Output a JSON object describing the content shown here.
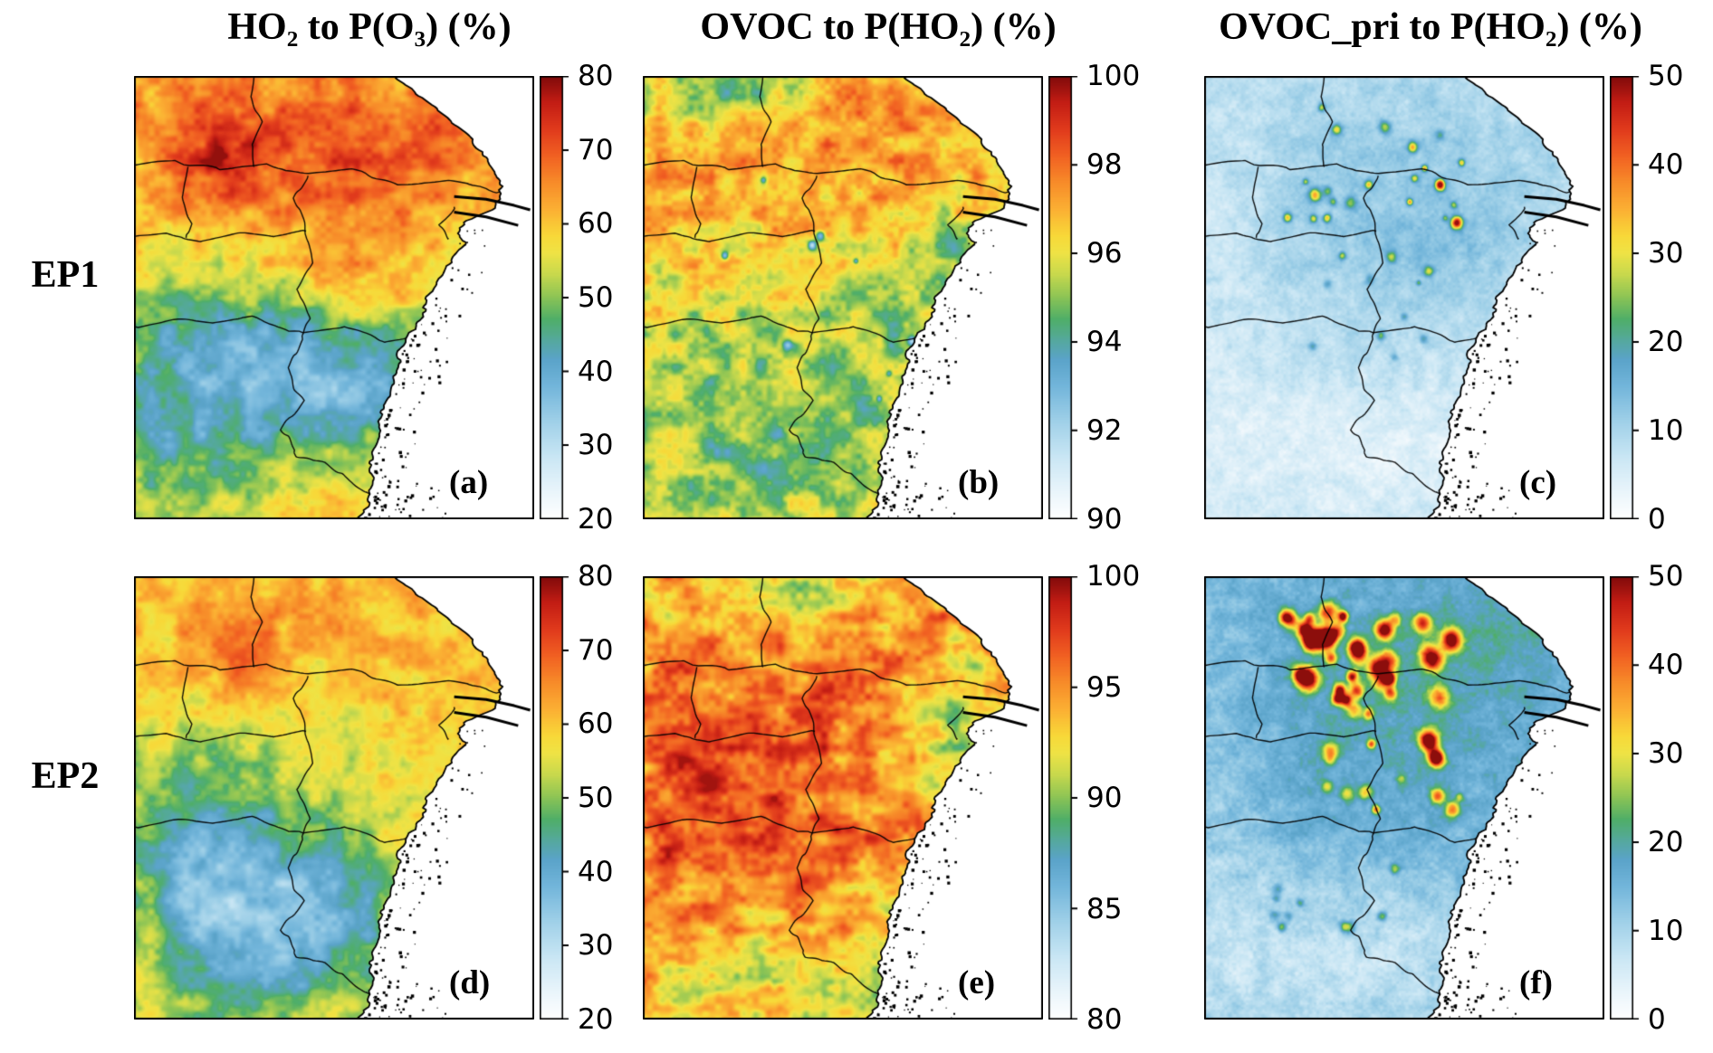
{
  "figure": {
    "background": "#ffffff",
    "column_titles": [
      "HO₂ to P(O₃) (%)",
      "OVOC to P(HO₂) (%)",
      "OVOC_pri to P(HO₂) (%)"
    ],
    "row_labels": [
      "EP1",
      "EP2"
    ]
  },
  "chart_data": {
    "type": "heatmap",
    "title": "Spatial distributions over eastern China (Yangtze River Delta region) for episodes EP1 and EP2",
    "rows": [
      "EP1",
      "EP2"
    ],
    "columns": [
      "HO2 to P(O3) (%)",
      "OVOC to P(HO2) (%)",
      "OVOC_pri to P(HO2) (%)"
    ],
    "legend_position": "right-colorbar-per-panel",
    "colormap_stops": [
      [
        0.0,
        "#ffffff"
      ],
      [
        0.06,
        "#eaf5fb"
      ],
      [
        0.14,
        "#c9e6f4"
      ],
      [
        0.22,
        "#9fd0e8"
      ],
      [
        0.3,
        "#72b5da"
      ],
      [
        0.36,
        "#5aa3c9"
      ],
      [
        0.4,
        "#55a8a0"
      ],
      [
        0.45,
        "#4fae68"
      ],
      [
        0.5,
        "#8cc455"
      ],
      [
        0.55,
        "#c6d84d"
      ],
      [
        0.6,
        "#efe345"
      ],
      [
        0.64,
        "#f8d838"
      ],
      [
        0.7,
        "#fbaf33"
      ],
      [
        0.76,
        "#f78b29"
      ],
      [
        0.82,
        "#f16022"
      ],
      [
        0.88,
        "#e03a1c"
      ],
      [
        0.94,
        "#c31d14"
      ],
      [
        1.0,
        "#7f0a0a"
      ]
    ],
    "panels": [
      {
        "letter": "(a)",
        "row": "EP1",
        "column": "HO2 to P(O3) (%)",
        "vmin": 20,
        "vmax": 80,
        "cbar_ticks": [
          80,
          70,
          60,
          50,
          40,
          30,
          20
        ],
        "seed": 101,
        "base": 60,
        "clamp": [
          22,
          79
        ],
        "blobs": [
          [
            0.3,
            0.1,
            0.45,
            0.18,
            6
          ],
          [
            0.22,
            0.19,
            0.07,
            0.06,
            11
          ],
          [
            0.55,
            0.3,
            0.25,
            0.12,
            5
          ],
          [
            0.33,
            0.6,
            0.28,
            0.16,
            -14
          ],
          [
            0.52,
            0.72,
            0.13,
            0.1,
            -10
          ],
          [
            0.12,
            0.8,
            0.22,
            0.18,
            -12
          ],
          [
            0.75,
            0.62,
            0.1,
            0.25,
            -5
          ],
          [
            0.6,
            0.47,
            0.3,
            0.06,
            6
          ],
          [
            0.65,
            0.13,
            0.18,
            0.1,
            4
          ]
        ],
        "octaves": [
          [
            24,
            26,
            5
          ],
          [
            70,
            78,
            2.5
          ]
        ]
      },
      {
        "letter": "(b)",
        "row": "EP1",
        "column": "OVOC to P(HO2) (%)",
        "vmin": 90,
        "vmax": 100,
        "cbar_ticks": [
          100,
          98,
          96,
          94,
          92,
          90
        ],
        "seed": 202,
        "base": 96.6,
        "clamp": [
          90.5,
          99.2
        ],
        "blobs": [
          [
            0.14,
            0.05,
            0.1,
            0.05,
            -2.2
          ],
          [
            0.3,
            0.04,
            0.08,
            0.04,
            -1.6
          ],
          [
            0.45,
            0.1,
            0.35,
            0.08,
            0.7
          ],
          [
            0.5,
            0.32,
            0.3,
            0.15,
            0.5
          ],
          [
            0.25,
            0.72,
            0.3,
            0.2,
            -1.5
          ],
          [
            0.65,
            0.57,
            0.12,
            0.18,
            -1.2
          ],
          [
            0.78,
            0.38,
            0.06,
            0.05,
            -1.8
          ],
          [
            0.45,
            0.9,
            0.3,
            0.08,
            -1.0
          ]
        ],
        "octaves": [
          [
            24,
            26,
            1.1
          ],
          [
            76,
            84,
            0.5
          ]
        ],
        "hotspots": {
          "gens": [
            {
              "seed": 31,
              "count": 12,
              "x": [
                0.2,
                0.78
              ],
              "y": [
                0.1,
                0.85
              ],
              "amp": [
                -4,
                -2
              ],
              "r": [
                0.006,
                0.012
              ]
            }
          ],
          "extras": []
        }
      },
      {
        "letter": "(c)",
        "row": "EP1",
        "column": "OVOC_pri to P(HO2) (%)",
        "vmin": 0,
        "vmax": 50,
        "cbar_ticks": [
          50,
          40,
          30,
          20,
          10,
          0
        ],
        "seed": 303,
        "base": 7.5,
        "clamp": [
          1,
          49
        ],
        "blobs": [
          [
            0.45,
            0.22,
            0.35,
            0.2,
            3.5
          ],
          [
            0.6,
            0.35,
            0.15,
            0.1,
            3
          ],
          [
            0.35,
            0.55,
            0.3,
            0.15,
            1
          ],
          [
            0.4,
            0.85,
            0.35,
            0.12,
            -3.5
          ],
          [
            0.05,
            0.45,
            0.1,
            0.3,
            -2
          ]
        ],
        "octaves": [
          [
            30,
            33,
            1.8
          ],
          [
            95,
            105,
            1.2
          ],
          [
            170,
            190,
            0.8
          ]
        ],
        "hotspots": {
          "gens": [
            {
              "seed": 41,
              "count": 22,
              "x": [
                0.18,
                0.66
              ],
              "y": [
                0.07,
                0.42
              ],
              "amp": [
                10,
                26
              ],
              "r": [
                0.007,
                0.016
              ]
            },
            {
              "seed": 42,
              "count": 8,
              "x": [
                0.2,
                0.6
              ],
              "y": [
                0.45,
                0.75
              ],
              "amp": [
                8,
                14
              ],
              "r": [
                0.006,
                0.012
              ]
            }
          ],
          "extras": [
            [
              0.63,
              0.33,
              40,
              0.014
            ],
            [
              0.52,
              0.16,
              24,
              0.012
            ],
            [
              0.33,
              0.12,
              20,
              0.012
            ],
            [
              0.56,
              0.44,
              18,
              0.012
            ]
          ]
        }
      },
      {
        "letter": "(d)",
        "row": "EP2",
        "column": "HO2 to P(O3) (%)",
        "vmin": 20,
        "vmax": 80,
        "cbar_ticks": [
          80,
          70,
          60,
          50,
          40,
          30,
          20
        ],
        "seed": 404,
        "base": 58,
        "clamp": [
          22,
          79
        ],
        "blobs": [
          [
            0.25,
            0.16,
            0.07,
            0.06,
            9
          ],
          [
            0.3,
            0.08,
            0.4,
            0.15,
            3
          ],
          [
            0.55,
            0.3,
            0.3,
            0.18,
            2
          ],
          [
            0.3,
            0.6,
            0.3,
            0.18,
            -14
          ],
          [
            0.42,
            0.82,
            0.18,
            0.12,
            -13
          ],
          [
            0.1,
            0.78,
            0.18,
            0.2,
            -10
          ],
          [
            0.03,
            0.8,
            0.05,
            0.18,
            8
          ],
          [
            0.55,
            0.52,
            0.25,
            0.08,
            4
          ]
        ],
        "octaves": [
          [
            24,
            26,
            4.5
          ],
          [
            70,
            78,
            2.2
          ]
        ]
      },
      {
        "letter": "(e)",
        "row": "EP2",
        "column": "OVOC to P(HO2) (%)",
        "vmin": 80,
        "vmax": 100,
        "cbar_ticks": [
          100,
          95,
          90,
          85,
          80
        ],
        "seed": 505,
        "base": 93.8,
        "clamp": [
          82,
          99.4
        ],
        "blobs": [
          [
            0.3,
            0.45,
            0.3,
            0.25,
            2.2
          ],
          [
            0.15,
            0.6,
            0.2,
            0.2,
            1.5
          ],
          [
            0.42,
            0.03,
            0.12,
            0.05,
            -3.5
          ],
          [
            0.78,
            0.33,
            0.07,
            0.08,
            -5
          ],
          [
            0.62,
            0.95,
            0.08,
            0.05,
            -4
          ],
          [
            0.3,
            0.88,
            0.3,
            0.1,
            -2
          ],
          [
            0.7,
            0.1,
            0.2,
            0.08,
            0.8
          ]
        ],
        "octaves": [
          [
            18,
            20,
            2.0
          ],
          [
            12,
            44,
            1.5
          ],
          [
            64,
            70,
            1.2
          ]
        ]
      },
      {
        "letter": "(f)",
        "row": "EP2",
        "column": "OVOC_pri to P(HO2) (%)",
        "vmin": 0,
        "vmax": 50,
        "cbar_ticks": [
          50,
          40,
          30,
          20,
          10,
          0
        ],
        "seed": 606,
        "base": 13,
        "clamp": [
          2,
          49.5
        ],
        "blobs": [
          [
            0.45,
            0.28,
            0.4,
            0.28,
            5
          ],
          [
            0.75,
            0.12,
            0.2,
            0.1,
            3
          ],
          [
            0.35,
            0.85,
            0.35,
            0.15,
            -6
          ],
          [
            0.05,
            0.5,
            0.08,
            0.3,
            -3
          ],
          [
            0.6,
            0.6,
            0.3,
            0.2,
            1
          ]
        ],
        "octaves": [
          [
            28,
            31,
            2.2
          ],
          [
            95,
            105,
            1.5
          ],
          [
            170,
            190,
            0.9
          ]
        ],
        "hotspots": {
          "gens": [
            {
              "seed": 51,
              "count": 30,
              "x": [
                0.2,
                0.62
              ],
              "y": [
                0.08,
                0.28
              ],
              "amp": [
                15,
                40
              ],
              "r": [
                0.012,
                0.026
              ]
            },
            {
              "seed": 52,
              "count": 14,
              "x": [
                0.3,
                0.65
              ],
              "y": [
                0.3,
                0.6
              ],
              "amp": [
                10,
                25
              ],
              "r": [
                0.01,
                0.02
              ]
            },
            {
              "seed": 53,
              "count": 10,
              "x": [
                0.15,
                0.55
              ],
              "y": [
                0.6,
                0.8
              ],
              "amp": [
                8,
                16
              ],
              "r": [
                0.008,
                0.014
              ]
            }
          ],
          "extras": [
            [
              0.56,
              0.37,
              45,
              0.022
            ],
            [
              0.58,
              0.41,
              40,
              0.018
            ],
            [
              0.3,
              0.14,
              45,
              0.024
            ],
            [
              0.38,
              0.16,
              42,
              0.02
            ],
            [
              0.45,
              0.12,
              40,
              0.02
            ],
            [
              0.25,
              0.12,
              38,
              0.018
            ]
          ]
        }
      }
    ]
  },
  "geo": {
    "coast_yx": [
      [
        0.0,
        0.655
      ],
      [
        0.04,
        0.7
      ],
      [
        0.08,
        0.76
      ],
      [
        0.13,
        0.83
      ],
      [
        0.18,
        0.875
      ],
      [
        0.23,
        0.905
      ],
      [
        0.265,
        0.925
      ],
      [
        0.3,
        0.89
      ],
      [
        0.33,
        0.835
      ],
      [
        0.355,
        0.8
      ],
      [
        0.375,
        0.825
      ],
      [
        0.4,
        0.8
      ],
      [
        0.45,
        0.77
      ],
      [
        0.5,
        0.735
      ],
      [
        0.57,
        0.7
      ],
      [
        0.63,
        0.665
      ],
      [
        0.7,
        0.64
      ],
      [
        0.78,
        0.615
      ],
      [
        0.86,
        0.6
      ],
      [
        0.93,
        0.585
      ],
      [
        1.0,
        0.565
      ]
    ],
    "borders": [
      [
        [
          0.3,
          0.0
        ],
        [
          0.29,
          0.05
        ],
        [
          0.315,
          0.1
        ],
        [
          0.29,
          0.15
        ],
        [
          0.3,
          0.205
        ]
      ],
      [
        [
          0.0,
          0.205
        ],
        [
          0.1,
          0.195
        ],
        [
          0.22,
          0.215
        ],
        [
          0.33,
          0.2
        ],
        [
          0.44,
          0.225
        ],
        [
          0.55,
          0.215
        ],
        [
          0.66,
          0.245
        ],
        [
          0.78,
          0.235
        ],
        [
          0.92,
          0.26
        ]
      ],
      [
        [
          0.0,
          0.365
        ],
        [
          0.08,
          0.355
        ],
        [
          0.17,
          0.37
        ],
        [
          0.26,
          0.355
        ],
        [
          0.35,
          0.365
        ],
        [
          0.43,
          0.35
        ]
      ],
      [
        [
          0.135,
          0.205
        ],
        [
          0.125,
          0.27
        ],
        [
          0.145,
          0.33
        ],
        [
          0.13,
          0.365
        ]
      ],
      [
        [
          0.435,
          0.225
        ],
        [
          0.4,
          0.28
        ],
        [
          0.43,
          0.35
        ],
        [
          0.45,
          0.42
        ],
        [
          0.41,
          0.48
        ],
        [
          0.44,
          0.545
        ],
        [
          0.42,
          0.585
        ]
      ],
      [
        [
          0.0,
          0.565
        ],
        [
          0.1,
          0.55
        ],
        [
          0.2,
          0.56
        ],
        [
          0.3,
          0.545
        ],
        [
          0.42,
          0.585
        ],
        [
          0.53,
          0.57
        ],
        [
          0.63,
          0.6
        ],
        [
          0.72,
          0.585
        ],
        [
          0.82,
          0.605
        ]
      ],
      [
        [
          0.42,
          0.585
        ],
        [
          0.38,
          0.66
        ],
        [
          0.42,
          0.73
        ],
        [
          0.37,
          0.8
        ],
        [
          0.4,
          0.85
        ]
      ],
      [
        [
          0.4,
          0.85
        ],
        [
          0.48,
          0.875
        ],
        [
          0.55,
          0.915
        ],
        [
          0.6,
          0.955
        ],
        [
          0.63,
          1.0
        ]
      ],
      [
        [
          0.8,
          0.295
        ],
        [
          0.76,
          0.33
        ],
        [
          0.785,
          0.365
        ]
      ]
    ],
    "estuary_spits": [
      [
        [
          0.8,
          0.272
        ],
        [
          0.88,
          0.278
        ],
        [
          0.95,
          0.292
        ],
        [
          0.99,
          0.302
        ]
      ],
      [
        [
          0.8,
          0.307
        ],
        [
          0.88,
          0.318
        ],
        [
          0.96,
          0.337
        ]
      ]
    ],
    "islands": {
      "seed": 55,
      "count": 160,
      "y_min": 0.42,
      "spread": 0.1,
      "bottom": {
        "count": 22,
        "x": [
          0.6,
          0.78
        ],
        "y": [
          0.92,
          1.0
        ]
      },
      "bay": {
        "count": 8,
        "x": [
          0.8,
          0.88
        ],
        "y": [
          0.345,
          0.385
        ]
      }
    }
  }
}
